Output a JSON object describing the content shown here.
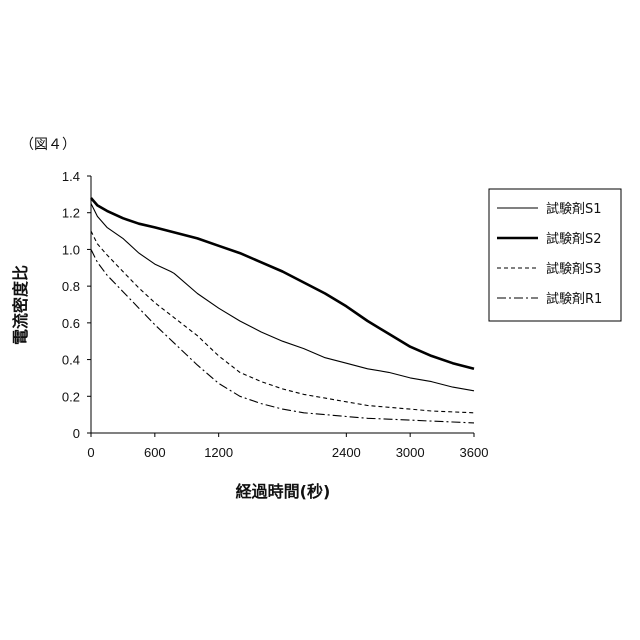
{
  "figure_label": "（図４）",
  "chart_data": {
    "type": "line",
    "title": "",
    "xlabel": "経過時間(秒)",
    "ylabel": "電流密度比",
    "xlim": [
      0,
      3600
    ],
    "ylim": [
      0,
      1.4
    ],
    "x_ticks": [
      0,
      600,
      1200,
      2400,
      3000,
      3600
    ],
    "x_tick_labels": [
      "0",
      "600",
      "1200",
      "2400",
      "3000",
      "3600"
    ],
    "y_ticks": [
      0,
      0.2,
      0.4,
      0.6,
      0.8,
      1.0,
      1.2,
      1.4
    ],
    "y_tick_labels": [
      "0",
      "0.2",
      "0.4",
      "0.6",
      "0.8",
      "1.0",
      "1.2",
      "1.4"
    ],
    "grid": false,
    "legend_position": "right",
    "series": [
      {
        "name": "試験剤S1",
        "style": "solid-thin",
        "points": [
          [
            0,
            1.25
          ],
          [
            60,
            1.18
          ],
          [
            150,
            1.12
          ],
          [
            300,
            1.06
          ],
          [
            450,
            0.98
          ],
          [
            600,
            0.92
          ],
          [
            750,
            0.88
          ],
          [
            780,
            0.87
          ],
          [
            800,
            0.86
          ],
          [
            1000,
            0.76
          ],
          [
            1200,
            0.68
          ],
          [
            1400,
            0.61
          ],
          [
            1600,
            0.55
          ],
          [
            1800,
            0.5
          ],
          [
            2000,
            0.46
          ],
          [
            2200,
            0.41
          ],
          [
            2400,
            0.38
          ],
          [
            2600,
            0.35
          ],
          [
            2800,
            0.33
          ],
          [
            3000,
            0.3
          ],
          [
            3200,
            0.28
          ],
          [
            3400,
            0.25
          ],
          [
            3600,
            0.23
          ]
        ]
      },
      {
        "name": "試験剤S2",
        "style": "solid-thick",
        "points": [
          [
            0,
            1.28
          ],
          [
            60,
            1.24
          ],
          [
            150,
            1.21
          ],
          [
            300,
            1.17
          ],
          [
            450,
            1.14
          ],
          [
            600,
            1.12
          ],
          [
            800,
            1.09
          ],
          [
            1000,
            1.06
          ],
          [
            1200,
            1.02
          ],
          [
            1400,
            0.98
          ],
          [
            1600,
            0.93
          ],
          [
            1800,
            0.88
          ],
          [
            2000,
            0.82
          ],
          [
            2200,
            0.76
          ],
          [
            2400,
            0.69
          ],
          [
            2600,
            0.61
          ],
          [
            2800,
            0.54
          ],
          [
            3000,
            0.47
          ],
          [
            3200,
            0.42
          ],
          [
            3400,
            0.38
          ],
          [
            3600,
            0.35
          ]
        ]
      },
      {
        "name": "試験剤S3",
        "style": "dashed",
        "points": [
          [
            0,
            1.1
          ],
          [
            60,
            1.03
          ],
          [
            150,
            0.97
          ],
          [
            300,
            0.88
          ],
          [
            450,
            0.79
          ],
          [
            600,
            0.71
          ],
          [
            800,
            0.62
          ],
          [
            1000,
            0.53
          ],
          [
            1200,
            0.42
          ],
          [
            1400,
            0.33
          ],
          [
            1600,
            0.28
          ],
          [
            1800,
            0.24
          ],
          [
            2000,
            0.21
          ],
          [
            2200,
            0.19
          ],
          [
            2400,
            0.17
          ],
          [
            2600,
            0.15
          ],
          [
            2800,
            0.14
          ],
          [
            3000,
            0.13
          ],
          [
            3200,
            0.12
          ],
          [
            3400,
            0.115
          ],
          [
            3600,
            0.11
          ]
        ]
      },
      {
        "name": "試験剤R1",
        "style": "dash-dot",
        "points": [
          [
            0,
            1.0
          ],
          [
            60,
            0.93
          ],
          [
            150,
            0.86
          ],
          [
            300,
            0.77
          ],
          [
            450,
            0.68
          ],
          [
            600,
            0.59
          ],
          [
            800,
            0.48
          ],
          [
            1000,
            0.37
          ],
          [
            1200,
            0.27
          ],
          [
            1400,
            0.2
          ],
          [
            1600,
            0.16
          ],
          [
            1800,
            0.13
          ],
          [
            2000,
            0.11
          ],
          [
            2200,
            0.1
          ],
          [
            2400,
            0.09
          ],
          [
            2600,
            0.08
          ],
          [
            2800,
            0.075
          ],
          [
            3000,
            0.07
          ],
          [
            3200,
            0.065
          ],
          [
            3400,
            0.06
          ],
          [
            3600,
            0.055
          ]
        ]
      }
    ]
  }
}
